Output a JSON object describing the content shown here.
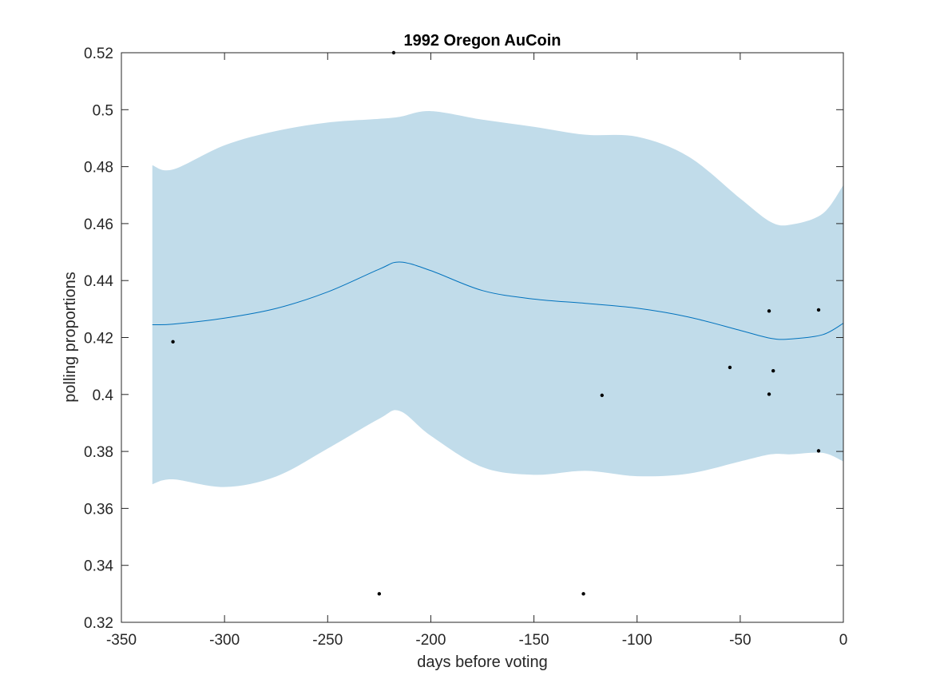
{
  "chart_data": {
    "type": "line",
    "title": "1992 Oregon AuCoin",
    "xlabel": "days before voting",
    "ylabel": "polling proportions",
    "xlim": [
      -350,
      0
    ],
    "ylim": [
      0.32,
      0.52
    ],
    "xticks": [
      -350,
      -300,
      -250,
      -200,
      -150,
      -100,
      -50,
      0
    ],
    "yticks": [
      0.32,
      0.34,
      0.36,
      0.38,
      0.4,
      0.42,
      0.44,
      0.46,
      0.48,
      0.5,
      0.52
    ],
    "xtick_labels": [
      "-350",
      "-300",
      "-250",
      "-200",
      "-150",
      "-100",
      "-50",
      "0"
    ],
    "ytick_labels": [
      "0.32",
      "0.34",
      "0.36",
      "0.38",
      "0.4",
      "0.42",
      "0.44",
      "0.46",
      "0.48",
      "0.5",
      "0.52"
    ],
    "grid": false,
    "colors": {
      "band": "#c1dcea",
      "line": "#0072bd",
      "points": "#000000",
      "axes": "#262626"
    },
    "series": [
      {
        "type": "line",
        "x": [
          -335,
          -325,
          -300,
          -275,
          -250,
          -225,
          -215,
          -200,
          -175,
          -150,
          -125,
          -100,
          -75,
          -50,
          -35,
          -25,
          -10,
          0
        ],
        "y": [
          0.4245,
          0.4247,
          0.4268,
          0.4302,
          0.436,
          0.444,
          0.4465,
          0.4435,
          0.4365,
          0.4335,
          0.432,
          0.4303,
          0.4272,
          0.4225,
          0.4197,
          0.4195,
          0.421,
          0.425
        ]
      },
      {
        "type": "band",
        "x": [
          -335,
          -325,
          -300,
          -275,
          -250,
          -225,
          -215,
          -200,
          -175,
          -150,
          -125,
          -100,
          -75,
          -50,
          -35,
          -25,
          -10,
          0
        ],
        "lower": [
          0.3685,
          0.3702,
          0.3675,
          0.3712,
          0.381,
          0.3915,
          0.3942,
          0.3855,
          0.3745,
          0.3718,
          0.3732,
          0.3713,
          0.3722,
          0.3765,
          0.379,
          0.379,
          0.3795,
          0.3765
        ],
        "upper": [
          0.4805,
          0.479,
          0.4875,
          0.4925,
          0.4955,
          0.4968,
          0.4975,
          0.4995,
          0.4965,
          0.494,
          0.4912,
          0.4905,
          0.4835,
          0.4688,
          0.4605,
          0.4597,
          0.4635,
          0.4735
        ]
      },
      {
        "type": "scatter",
        "x": [
          -325,
          -225,
          -218,
          -126,
          -117,
          -55,
          -36,
          -36,
          -34,
          -12,
          -12
        ],
        "y": [
          0.4185,
          0.33,
          0.52,
          0.33,
          0.3997,
          0.4095,
          0.4293,
          0.4001,
          0.4083,
          0.4297,
          0.3802
        ]
      }
    ]
  }
}
